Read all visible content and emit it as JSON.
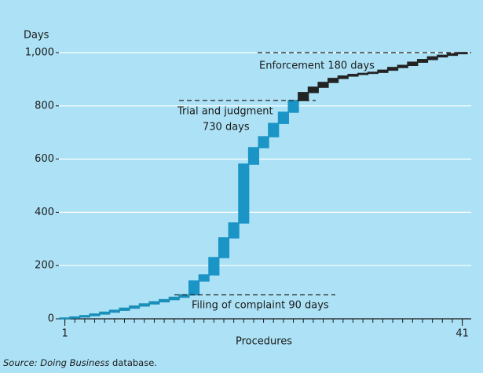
{
  "chart_data": {
    "type": "waterfall",
    "y_axis_label": "Days",
    "x_axis_label": "Procedures",
    "source_prefix": "Source: Doing Business",
    "source_suffix": " database.",
    "annotations": [
      "Filing of complaint 90 days",
      "Trial and judgment",
      "730 days",
      "Enforcement 180 days"
    ],
    "values": [
      3,
      4,
      5,
      6,
      7,
      7,
      8,
      8,
      8,
      8,
      8,
      9,
      9,
      52,
      23,
      65,
      74,
      56,
      221,
      62,
      41,
      50,
      42,
      44,
      30,
      20,
      18,
      15,
      9,
      6,
      4,
      4,
      8,
      10,
      8,
      12,
      10,
      10,
      6,
      6,
      4
    ],
    "colors": [
      "#1a8fb8",
      "#1a8fb8",
      "#1a8fb8",
      "#1a8fb8",
      "#1a8fb8",
      "#1a8fb8",
      "#1a8fb8",
      "#1a8fb8",
      "#1a8fb8",
      "#1a8fb8",
      "#1a8fb8",
      "#1a8fb8",
      "#1a8fb8",
      "#1b94c6",
      "#1b94c6",
      "#1b94c6",
      "#1b94c6",
      "#1b94c6",
      "#1b94c6",
      "#1b94c6",
      "#1b94c6",
      "#1b94c6",
      "#1b94c6",
      "#1b94c6",
      "#232323",
      "#232323",
      "#232323",
      "#232323",
      "#232323",
      "#232323",
      "#232323",
      "#232323",
      "#232323",
      "#232323",
      "#232323",
      "#232323",
      "#232323",
      "#232323",
      "#232323",
      "#232323",
      "#232323"
    ],
    "xlim": [
      0.4,
      41.9
    ],
    "xticks": [
      1,
      41
    ],
    "ylim": [
      0,
      1000
    ],
    "yticks": [
      0,
      200,
      400,
      600,
      800,
      {
        "value": 1000,
        "label": "1,000"
      }
    ],
    "grid": true
  }
}
